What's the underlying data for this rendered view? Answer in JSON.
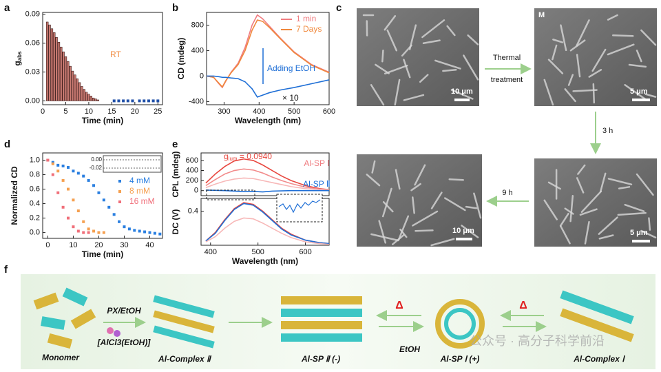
{
  "panels": [
    "a",
    "b",
    "c",
    "d",
    "e",
    "f"
  ],
  "chart_data": [
    {
      "type": "bar",
      "xlabel": "Time (min)",
      "ylabel": [
        "g",
        "abs"
      ],
      "x": [
        1,
        1.5,
        2,
        2.5,
        3,
        3.5,
        4,
        4.5,
        5,
        5.5,
        6,
        6.5,
        7,
        7.5,
        8,
        8.5,
        9,
        9.5,
        10,
        10.5,
        11,
        11.5,
        12
      ],
      "xlim": [
        0,
        26
      ],
      "ylim": [
        -0.004,
        0.092
      ],
      "xticks": [
        0,
        5,
        10,
        15,
        20,
        25
      ],
      "yticks": [
        {
          "value": 0,
          "label": "0.00"
        },
        {
          "value": 0.03,
          "label": "0.03"
        },
        {
          "value": 0.06,
          "label": "0.06"
        },
        {
          "value": 0.09,
          "label": "0.09"
        }
      ],
      "series": [
        {
          "color": "#c97a72",
          "values": [
            0.082,
            0.079,
            0.075,
            0.071,
            0.066,
            0.061,
            0.056,
            0.051,
            0.046,
            0.041,
            0.036,
            0.031,
            0.027,
            0.023,
            0.019,
            0.015,
            0.012,
            0.009,
            0.007,
            0.005,
            0.003,
            0.002,
            0.001
          ]
        },
        {
          "type": "scatter",
          "color": "#1f4fa8",
          "x": [
            15.5,
            16.5,
            17.5,
            18.5,
            19.5,
            21,
            22,
            23,
            24,
            25
          ],
          "values": [
            0,
            0,
            0,
            0,
            0,
            0,
            0,
            0,
            0,
            0
          ]
        }
      ],
      "annotations": [
        "RT"
      ]
    },
    {
      "type": "line",
      "xlabel": "Wavelength (nm)",
      "ylabel": [
        "CD (mdeg)"
      ],
      "x": [
        250,
        270,
        285,
        295,
        305,
        320,
        340,
        360,
        380,
        395,
        410,
        430,
        460,
        500,
        550,
        600
      ],
      "xlim": [
        250,
        600
      ],
      "ylim": [
        -450,
        1000
      ],
      "xticks": [
        300,
        400,
        500,
        600
      ],
      "yticks": [
        -400,
        0,
        400,
        800
      ],
      "legend": "upper right",
      "series": [
        {
          "name": "1 min",
          "color": "#f07c80",
          "values": [
            0,
            -20,
            -120,
            -180,
            -80,
            60,
            200,
            450,
            800,
            960,
            900,
            780,
            600,
            380,
            180,
            60
          ]
        },
        {
          "name": "7 Days",
          "color": "#f0883c",
          "values": [
            0,
            -20,
            -110,
            -170,
            -70,
            50,
            180,
            400,
            720,
            880,
            860,
            760,
            590,
            370,
            170,
            50
          ]
        },
        {
          "color": "#1f6fd6",
          "values": [
            0,
            0,
            -10,
            -20,
            -20,
            -30,
            -40,
            -90,
            -200,
            -330,
            -300,
            -260,
            -220,
            -180,
            -120,
            -60
          ]
        }
      ],
      "annotations": [
        "Adding EtOH",
        "× 10"
      ]
    },
    {
      "type": "scatter",
      "xlabel": "Time (min)",
      "ylabel": [
        "Normalized CD"
      ],
      "x": [
        0,
        2,
        4,
        6,
        8,
        10,
        12,
        14,
        16,
        18,
        20,
        22,
        24,
        26,
        28,
        30,
        32,
        34,
        36,
        38,
        40,
        42,
        44
      ],
      "xlim": [
        -2,
        45
      ],
      "ylim": [
        -0.08,
        1.1
      ],
      "xticks": [
        0,
        10,
        20,
        30,
        40
      ],
      "yticks": [
        {
          "value": 0,
          "label": "0.0"
        },
        {
          "value": 0.2,
          "label": "0.2"
        },
        {
          "value": 0.4,
          "label": "0.4"
        },
        {
          "value": 0.6,
          "label": "0.6"
        },
        {
          "value": 0.8,
          "label": "0.8"
        },
        {
          "value": 1,
          "label": "1.0"
        }
      ],
      "legend": "center right",
      "series": [
        {
          "name": "4 mM",
          "color": "#2a7fe0",
          "values": [
            1.0,
            0.97,
            0.93,
            0.92,
            0.9,
            0.85,
            0.82,
            0.78,
            0.72,
            0.65,
            0.55,
            0.45,
            0.35,
            0.25,
            0.15,
            0.08,
            0.05,
            0.03,
            0.02,
            0.01,
            0.0,
            -0.01,
            -0.02
          ]
        },
        {
          "name": "8 mM",
          "color": "#f5a050",
          "values": [
            1.0,
            0.95,
            0.85,
            0.72,
            0.6,
            0.45,
            0.3,
            0.15,
            0.05,
            0.02,
            0.0,
            0.0,
            null,
            null,
            null,
            null,
            null,
            null,
            null,
            null,
            null,
            null,
            null
          ]
        },
        {
          "name": "16 mM",
          "color": "#f06f7a",
          "values": [
            1.0,
            0.8,
            0.55,
            0.35,
            0.2,
            0.08,
            0.02,
            0.0,
            0.0,
            null,
            null,
            null,
            null,
            null,
            null,
            null,
            null,
            null,
            null,
            null,
            null,
            null,
            null
          ]
        }
      ],
      "inset_yticks": [
        {
          "value": 0,
          "label": "0.00"
        },
        {
          "value": -0.02,
          "label": "-0.02"
        }
      ]
    },
    {
      "type": "line",
      "ylabel": [
        "CPL (mdeg)"
      ],
      "x": [
        390,
        410,
        430,
        450,
        470,
        490,
        510,
        530,
        550,
        570,
        600,
        630,
        650
      ],
      "xlim": [
        380,
        650
      ],
      "ylim": [
        -100,
        750
      ],
      "yticks": [
        0,
        200,
        400,
        600
      ],
      "series": [
        {
          "color": "#e8473f",
          "values": [
            150,
            330,
            480,
            590,
            630,
            600,
            510,
            400,
            290,
            200,
            100,
            40,
            20
          ]
        },
        {
          "color": "#f28b8b",
          "values": [
            100,
            220,
            330,
            400,
            430,
            410,
            350,
            270,
            200,
            140,
            70,
            30,
            15
          ]
        },
        {
          "color": "#f7b8b8",
          "values": [
            60,
            130,
            190,
            230,
            250,
            240,
            200,
            160,
            120,
            80,
            40,
            20,
            10
          ]
        },
        {
          "color": "#1f6fd6",
          "values": [
            10,
            5,
            0,
            -10,
            -20,
            -15,
            -25,
            -10,
            -5,
            0,
            0,
            0,
            0
          ]
        }
      ],
      "annotations": [
        [
          "g",
          "lum",
          " = 0.0940"
        ],
        "Al-SP Ⅰ",
        "Al-SP Ⅱ"
      ]
    },
    {
      "type": "line",
      "xlabel": "Wavelength (nm)",
      "ylabel": [
        "DC (V)"
      ],
      "x": [
        390,
        410,
        430,
        450,
        470,
        490,
        510,
        530,
        550,
        570,
        600,
        630,
        650
      ],
      "xlim": [
        380,
        650
      ],
      "ylim": [
        0,
        0.55
      ],
      "xticks": [
        400,
        500,
        600
      ],
      "yticks": [
        0.4
      ],
      "series": [
        {
          "color": "#e8473f",
          "values": [
            0.05,
            0.15,
            0.3,
            0.43,
            0.5,
            0.48,
            0.4,
            0.3,
            0.2,
            0.13,
            0.06,
            0.03,
            0.02
          ]
        },
        {
          "color": "#1f6fd6",
          "values": [
            0.05,
            0.14,
            0.29,
            0.42,
            0.49,
            0.47,
            0.39,
            0.29,
            0.19,
            0.12,
            0.06,
            0.03,
            0.02
          ]
        },
        {
          "color": "#f7b8b8",
          "values": [
            0.04,
            0.1,
            0.2,
            0.28,
            0.32,
            0.31,
            0.26,
            0.2,
            0.14,
            0.09,
            0.04,
            0.02,
            0.01
          ]
        }
      ]
    }
  ],
  "sem": {
    "scale_bars": [
      "10 μm",
      "5 μm",
      "5 μm",
      "10 μm"
    ],
    "label_m": "M",
    "steps": [
      [
        "Thermal",
        "treatment"
      ],
      [
        "3 h"
      ],
      [
        "9 h"
      ]
    ]
  },
  "scheme": {
    "monomer": "Monomer",
    "reagent": "PX/EtOH",
    "catalyst": "[AlCl3(EtOH)]",
    "complex2": "Al-Complex Ⅱ",
    "sp2": "Al-SP Ⅱ (-)",
    "heat1": "Δ",
    "etoh": "EtOH",
    "sp1": "Al-SP Ⅰ (+)",
    "heat2": "Δ",
    "complex1": "Al-Complex Ⅰ",
    "watermark": "公众号 · 高分子科学前沿"
  }
}
